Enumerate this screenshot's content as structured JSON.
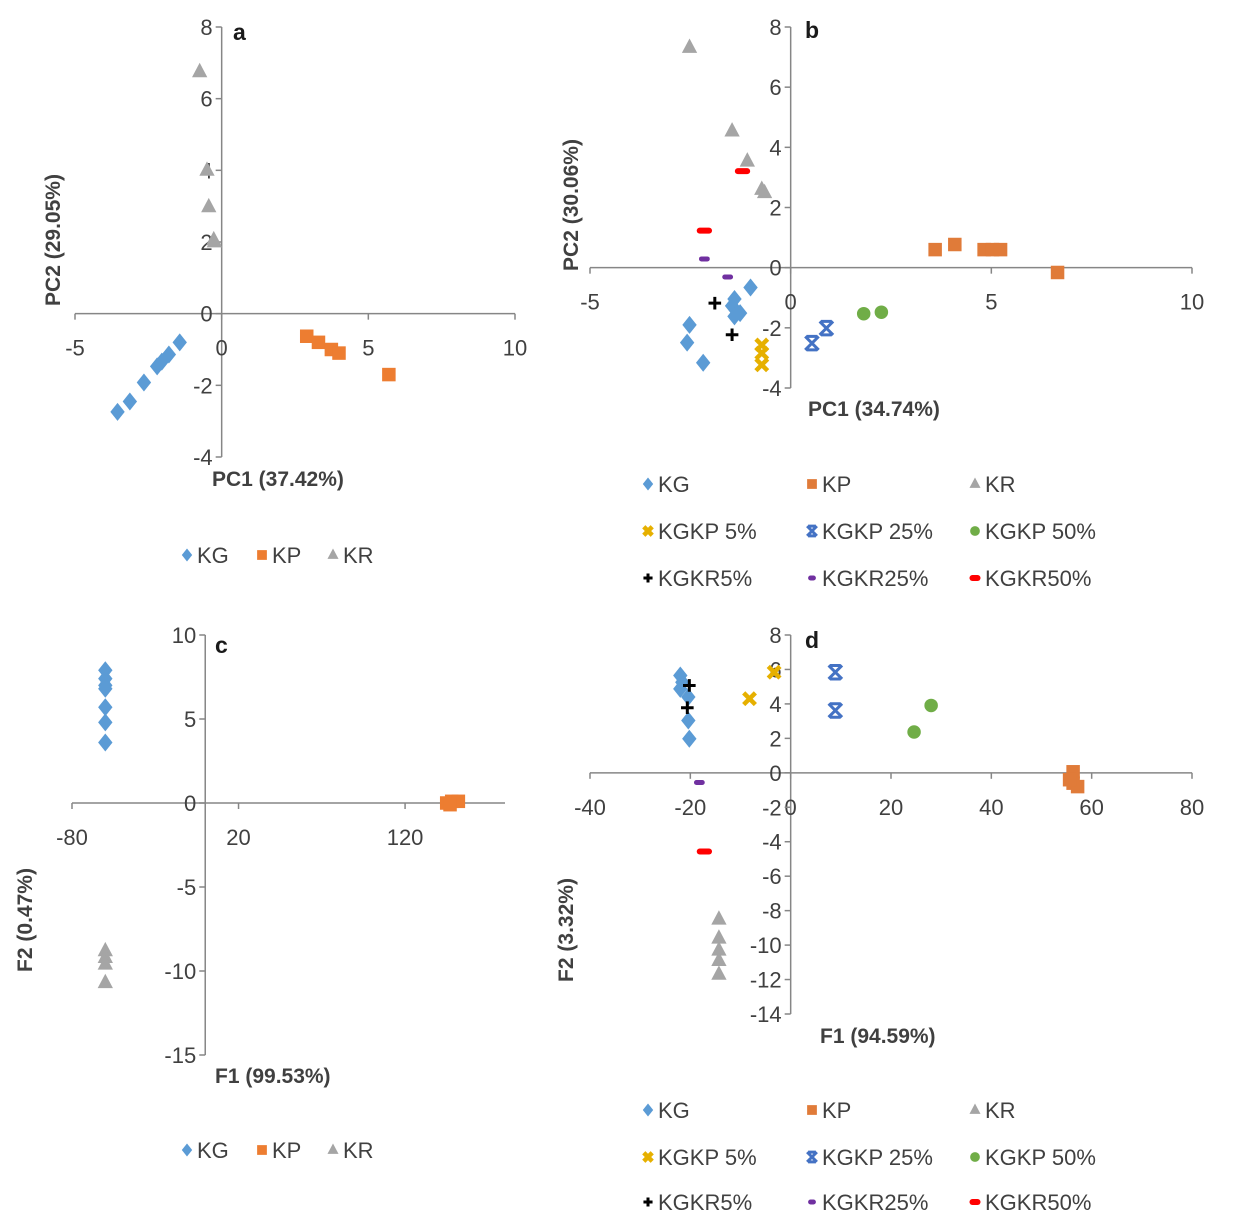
{
  "chart_data": [
    {
      "type": "scatter",
      "panel_label": "a",
      "xlabel": "PC1 (37.42%)",
      "ylabel": "PC2 (29.05%)",
      "xlim": [
        -5,
        10
      ],
      "ylim": [
        -4,
        8
      ],
      "xticks": [
        -5,
        0,
        5,
        10
      ],
      "yticks": [
        -4,
        -2,
        0,
        2,
        4,
        6,
        8
      ],
      "grid": false,
      "legend_position": "bottom",
      "series": [
        {
          "name": "KG",
          "marker": "diamond",
          "color": "#5b9bd5",
          "points": [
            [
              -3.55,
              -2.74
            ],
            [
              -3.13,
              -2.45
            ],
            [
              -2.65,
              -1.92
            ],
            [
              -2.2,
              -1.47
            ],
            [
              -2.04,
              -1.34
            ],
            [
              -1.8,
              -1.14
            ],
            [
              -1.43,
              -0.8
            ]
          ]
        },
        {
          "name": "KP",
          "marker": "square",
          "color": "#ed7d31",
          "points": [
            [
              2.9,
              -0.63
            ],
            [
              3.3,
              -0.8
            ],
            [
              3.74,
              -1.0
            ],
            [
              4.0,
              -1.1
            ],
            [
              5.7,
              -1.7
            ]
          ]
        },
        {
          "name": "KR",
          "marker": "triangle",
          "color": "#a5a5a5",
          "points": [
            [
              -0.75,
              6.75
            ],
            [
              -0.5,
              4.0
            ],
            [
              -0.44,
              2.98
            ],
            [
              -0.27,
              2.06
            ],
            [
              -0.25,
              2.0
            ]
          ]
        }
      ]
    },
    {
      "type": "scatter",
      "panel_label": "b",
      "xlabel": "PC1 (34.74%)",
      "ylabel": "PC2 (30.06%)",
      "xlim": [
        -5,
        10
      ],
      "ylim": [
        -4,
        8
      ],
      "xticks": [
        -5,
        0,
        5,
        10
      ],
      "yticks": [
        -4,
        -2,
        0,
        2,
        4,
        6,
        8
      ],
      "grid": false,
      "legend_position": "bottom",
      "series": [
        {
          "name": "KG",
          "marker": "diamond",
          "color": "#5b9bd5",
          "points": [
            [
              -1.0,
              -0.66
            ],
            [
              -1.4,
              -1.04
            ],
            [
              -1.46,
              -1.27
            ],
            [
              -1.26,
              -1.51
            ],
            [
              -1.4,
              -1.62
            ],
            [
              -2.52,
              -1.9
            ],
            [
              -2.58,
              -2.49
            ],
            [
              -2.18,
              -3.16
            ]
          ]
        },
        {
          "name": "KP",
          "marker": "square",
          "color": "#e07b39",
          "points": [
            [
              3.6,
              0.6
            ],
            [
              4.09,
              0.77
            ],
            [
              4.82,
              0.6
            ],
            [
              5.03,
              0.6
            ],
            [
              5.23,
              0.6
            ],
            [
              6.65,
              -0.16
            ]
          ]
        },
        {
          "name": "KR",
          "marker": "triangle",
          "color": "#a5a5a5",
          "points": [
            [
              -2.52,
              7.32
            ],
            [
              -1.46,
              4.54
            ],
            [
              -1.08,
              3.54
            ],
            [
              -0.72,
              2.6
            ],
            [
              -0.65,
              2.49
            ]
          ]
        },
        {
          "name": "KGKP 5%",
          "marker": "x",
          "color": "#e6b000",
          "points": [
            [
              -0.72,
              -2.57
            ],
            [
              -0.72,
              -2.84
            ],
            [
              -0.72,
              -3.23
            ]
          ]
        },
        {
          "name": "KGKP 25%",
          "marker": "star",
          "color": "#4472c4",
          "points": [
            [
              0.53,
              -2.51
            ],
            [
              0.89,
              -2.01
            ]
          ]
        },
        {
          "name": "KGKP 50%",
          "marker": "circle",
          "color": "#70ad47",
          "points": [
            [
              1.82,
              -1.53
            ],
            [
              2.26,
              -1.48
            ]
          ]
        },
        {
          "name": "KGKR5%",
          "marker": "plus",
          "color": "#000000",
          "points": [
            [
              -1.89,
              -1.18
            ],
            [
              -1.46,
              -2.23
            ]
          ]
        },
        {
          "name": "KGKR25%",
          "marker": "dash",
          "color": "#7030a0",
          "points": [
            [
              -2.15,
              0.29
            ],
            [
              -1.57,
              -0.31
            ]
          ]
        },
        {
          "name": "KGKR50%",
          "marker": "longdash",
          "color": "#ff0000",
          "points": [
            [
              -1.2,
              3.21
            ],
            [
              -2.15,
              1.23
            ]
          ]
        }
      ]
    },
    {
      "type": "scatter",
      "panel_label": "c",
      "xlabel": "F1 (99.53%)",
      "ylabel": "F2  (0.47%)",
      "xlim": [
        -80,
        180
      ],
      "ylim": [
        -15,
        10
      ],
      "xticks": [
        -80,
        20,
        120
      ],
      "yticks": [
        -15,
        -10,
        -5,
        0,
        5,
        10
      ],
      "grid": false,
      "legend_position": "bottom",
      "series": [
        {
          "name": "KG",
          "marker": "diamond",
          "color": "#5b9bd5",
          "points": [
            [
              -60,
              7.9
            ],
            [
              -60,
              7.4
            ],
            [
              -60,
              7.0
            ],
            [
              -60,
              6.8
            ],
            [
              -60,
              5.7
            ],
            [
              -60,
              4.8
            ],
            [
              -60,
              3.6
            ]
          ]
        },
        {
          "name": "KP",
          "marker": "square",
          "color": "#ed7d31",
          "points": [
            [
              145,
              0.0
            ],
            [
              148,
              0.1
            ],
            [
              152,
              0.1
            ],
            [
              147,
              -0.1
            ]
          ]
        },
        {
          "name": "KR",
          "marker": "triangle",
          "color": "#a5a5a5",
          "points": [
            [
              -60,
              -8.8
            ],
            [
              -60,
              -9.2
            ],
            [
              -60,
              -9.6
            ],
            [
              -60,
              -10.7
            ]
          ]
        }
      ]
    },
    {
      "type": "scatter",
      "panel_label": "d",
      "xlabel": "F1 (94.59%)",
      "ylabel": "F2 (3.32%)",
      "xlim": [
        -40,
        80
      ],
      "ylim": [
        -14,
        8
      ],
      "xticks": [
        -40,
        -20,
        0,
        20,
        40,
        60,
        80
      ],
      "yticks": [
        -14,
        -12,
        -10,
        -8,
        -6,
        -4,
        -2,
        0,
        2,
        4,
        6,
        8
      ],
      "grid": false,
      "legend_position": "bottom",
      "series": [
        {
          "name": "KG",
          "marker": "diamond",
          "color": "#5b9bd5",
          "points": [
            [
              -22,
              5.65
            ],
            [
              -21.6,
              5.26
            ],
            [
              -22,
              4.87
            ],
            [
              -20.4,
              4.4
            ],
            [
              -20.4,
              3.04
            ],
            [
              -20.2,
              1.98
            ]
          ]
        },
        {
          "name": "KP",
          "marker": "square",
          "color": "#e07b39",
          "points": [
            [
              56.3,
              0.06
            ],
            [
              56.3,
              -0.6
            ],
            [
              57.2,
              -0.8
            ],
            [
              55.6,
              -0.4
            ]
          ]
        },
        {
          "name": "KR",
          "marker": "triangle",
          "color": "#a5a5a5",
          "points": [
            [
              -14.3,
              -8.5
            ],
            [
              -14.3,
              -9.6
            ],
            [
              -14.3,
              -10.3
            ],
            [
              -14.3,
              -10.9
            ],
            [
              -14.3,
              -11.7
            ]
          ]
        },
        {
          "name": "KGKP 5%",
          "marker": "x",
          "color": "#e6b000",
          "points": [
            [
              -3.3,
              5.84
            ],
            [
              -8.2,
              4.3
            ]
          ]
        },
        {
          "name": "KGKP 25%",
          "marker": "star",
          "color": "#4472c4",
          "points": [
            [
              8.9,
              5.84
            ],
            [
              8.9,
              3.62
            ]
          ]
        },
        {
          "name": "KGKP 50%",
          "marker": "circle",
          "color": "#70ad47",
          "points": [
            [
              28,
              3.91
            ],
            [
              24.6,
              2.37
            ]
          ]
        },
        {
          "name": "KGKR5%",
          "marker": "plus",
          "color": "#000000",
          "points": [
            [
              -20.2,
              5.07
            ],
            [
              -20.6,
              3.78
            ]
          ]
        },
        {
          "name": "KGKR25%",
          "marker": "dash",
          "color": "#7030a0",
          "points": [
            [
              -18.2,
              -0.56
            ]
          ]
        },
        {
          "name": "KGKR50%",
          "marker": "longdash",
          "color": "#ff0000",
          "points": [
            [
              -17.2,
              -4.57
            ]
          ]
        }
      ]
    }
  ],
  "colors": {
    "axis": "#868686",
    "text": "#404040"
  }
}
